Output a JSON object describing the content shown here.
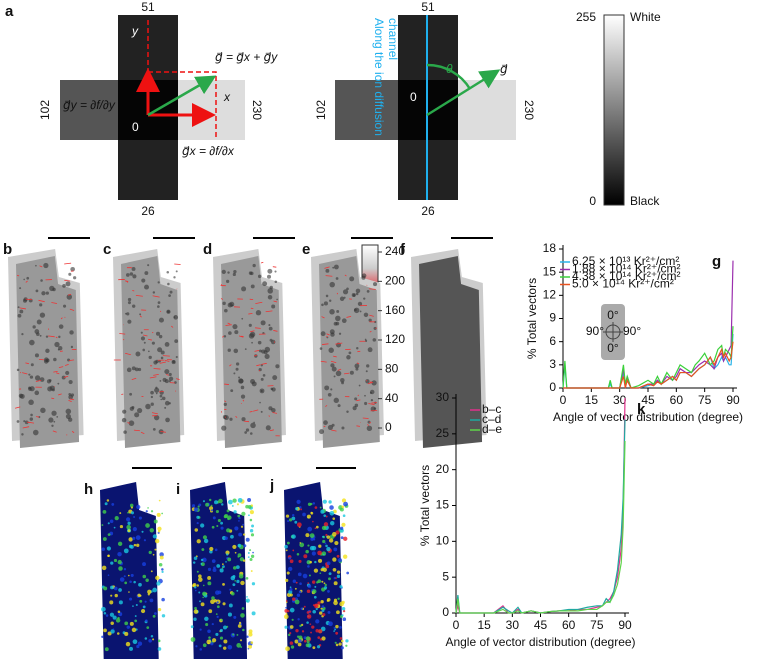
{
  "panel_labels": [
    "a",
    "b",
    "c",
    "d",
    "e",
    "f",
    "g",
    "h",
    "i",
    "j",
    "k"
  ],
  "diagram_left": {
    "top": "51",
    "bottom": "26",
    "left": "102",
    "right": "230",
    "axis_y": "y",
    "axis_x": "x",
    "origin": "0",
    "g_sum": "g⃗ = g⃗x + g⃗y",
    "g_y": "g⃗y = ∂f/∂y",
    "g_x": "g⃗x = ∂f/∂x"
  },
  "diagram_right": {
    "top": "51",
    "bottom": "26",
    "left": "102",
    "right": "230",
    "origin": "0",
    "channel_lines": [
      "Along the ion diffusion",
      "channel"
    ],
    "angle": "θ",
    "vector": "g⃗"
  },
  "grayscale": {
    "max": "255",
    "max_label": "White",
    "min": "0",
    "min_label": "Black"
  },
  "heat_colorbar": {
    "lim": [
      0,
      240
    ],
    "ticks": [
      0,
      40,
      80,
      120,
      160,
      200,
      240
    ]
  },
  "chart_data": [
    {
      "type": "line",
      "xlabel": "Angle of vector distribution (degree)",
      "ylabel": "% Total vectors",
      "xlim": [
        0,
        90
      ],
      "xticks": [
        0,
        15,
        30,
        45,
        60,
        75,
        90
      ],
      "ylim": [
        0,
        18
      ],
      "yticks": [
        0,
        3,
        6,
        9,
        12,
        15,
        18
      ],
      "annotations": [
        "0°",
        "90°",
        "90°",
        "0°"
      ],
      "x": [
        0,
        1,
        2,
        5,
        10,
        15,
        20,
        24,
        25,
        26,
        30,
        32,
        33,
        34,
        36,
        40,
        45,
        48,
        50,
        52,
        55,
        58,
        60,
        62,
        65,
        68,
        70,
        72,
        75,
        78,
        80,
        82,
        84,
        85,
        86,
        88,
        89,
        90
      ],
      "series": [
        {
          "name": "6.25 × 10¹³ Kr²⁺/cm²",
          "color": "#2ab4e8",
          "values": [
            0,
            3,
            0,
            0,
            0,
            0,
            0,
            0,
            0.5,
            0,
            0,
            2,
            0.3,
            1,
            0,
            0,
            0.3,
            0.5,
            1,
            0.5,
            1,
            1.5,
            1,
            2,
            2,
            1.5,
            2,
            2.5,
            3,
            4,
            2.5,
            3,
            4,
            3.5,
            4,
            3,
            3,
            7
          ]
        },
        {
          "name": "1.88 × 10¹⁴ Kr²⁺/cm²",
          "color": "#9b2fae",
          "values": [
            0,
            0,
            0,
            0,
            0,
            0,
            0,
            0,
            0,
            0,
            0,
            2.5,
            0,
            1.5,
            0,
            0,
            0.5,
            0.5,
            1,
            0.5,
            1.5,
            1,
            1.5,
            2.5,
            2,
            2,
            2.5,
            3,
            3.5,
            3,
            2.5,
            4,
            4.5,
            3.5,
            4,
            5,
            5.5,
            16.5
          ]
        },
        {
          "name": "4.38 × 10¹⁴ Kr²⁺/cm²",
          "color": "#3ad13a",
          "values": [
            0,
            3.5,
            0,
            0,
            0,
            0,
            0,
            0,
            1,
            0,
            0,
            3,
            0.5,
            1.5,
            0,
            0.3,
            1,
            0.5,
            1.5,
            0.5,
            2,
            1,
            2,
            3,
            2.5,
            2,
            3,
            3.5,
            4.5,
            3,
            3.5,
            5,
            5.5,
            4,
            5,
            4.5,
            4,
            8
          ]
        },
        {
          "name": "5.0 × 10¹⁴ Kr²⁺/cm²",
          "color": "#e8531f",
          "values": [
            0,
            0,
            0,
            0,
            0,
            0,
            0,
            0,
            0,
            0,
            0,
            1.5,
            0,
            1,
            0,
            0,
            0.5,
            0.3,
            0.8,
            0.5,
            1,
            1.5,
            1,
            2,
            2,
            1.5,
            2,
            2.5,
            3,
            4,
            3,
            4,
            5,
            4,
            4.5,
            3.5,
            4,
            6
          ]
        }
      ]
    },
    {
      "type": "line",
      "xlabel": "Angle of vector distribution (degree)",
      "ylabel": "% Total vectors",
      "xlim": [
        0,
        90
      ],
      "xticks": [
        0,
        15,
        30,
        45,
        60,
        75,
        90
      ],
      "ylim": [
        0,
        30
      ],
      "yticks": [
        0,
        5,
        10,
        15,
        20,
        25,
        30
      ],
      "x": [
        0,
        1,
        2,
        5,
        10,
        15,
        20,
        25,
        28,
        30,
        33,
        35,
        40,
        45,
        50,
        55,
        60,
        65,
        70,
        75,
        78,
        80,
        82,
        84,
        86,
        88,
        89,
        90
      ],
      "series": [
        {
          "name": "b–c",
          "color": "#e0328c",
          "values": [
            0,
            1,
            0,
            0,
            0,
            0,
            0,
            1,
            0,
            0,
            0.5,
            0,
            0.3,
            0,
            0.2,
            0.3,
            0.3,
            0.5,
            0.5,
            0.8,
            1,
            1.5,
            2,
            3,
            5,
            9,
            14,
            30
          ]
        },
        {
          "name": "c–d",
          "color": "#1fa9a0",
          "values": [
            0,
            2.5,
            0,
            0,
            0,
            0,
            0,
            0.8,
            0.3,
            0,
            0.8,
            0,
            0.3,
            0,
            0.2,
            0.3,
            0.5,
            0.5,
            0.8,
            1,
            1,
            2,
            1.5,
            3,
            6,
            11,
            16,
            27
          ]
        },
        {
          "name": "d–e",
          "color": "#5fd44a",
          "values": [
            0,
            2,
            0,
            0,
            0,
            0,
            0,
            0.5,
            0,
            0,
            0.3,
            0,
            0.3,
            0,
            0.2,
            0.3,
            0.3,
            0.3,
            0.5,
            0.5,
            1,
            1.5,
            1.5,
            2.5,
            4,
            7,
            12,
            24
          ]
        }
      ]
    }
  ]
}
